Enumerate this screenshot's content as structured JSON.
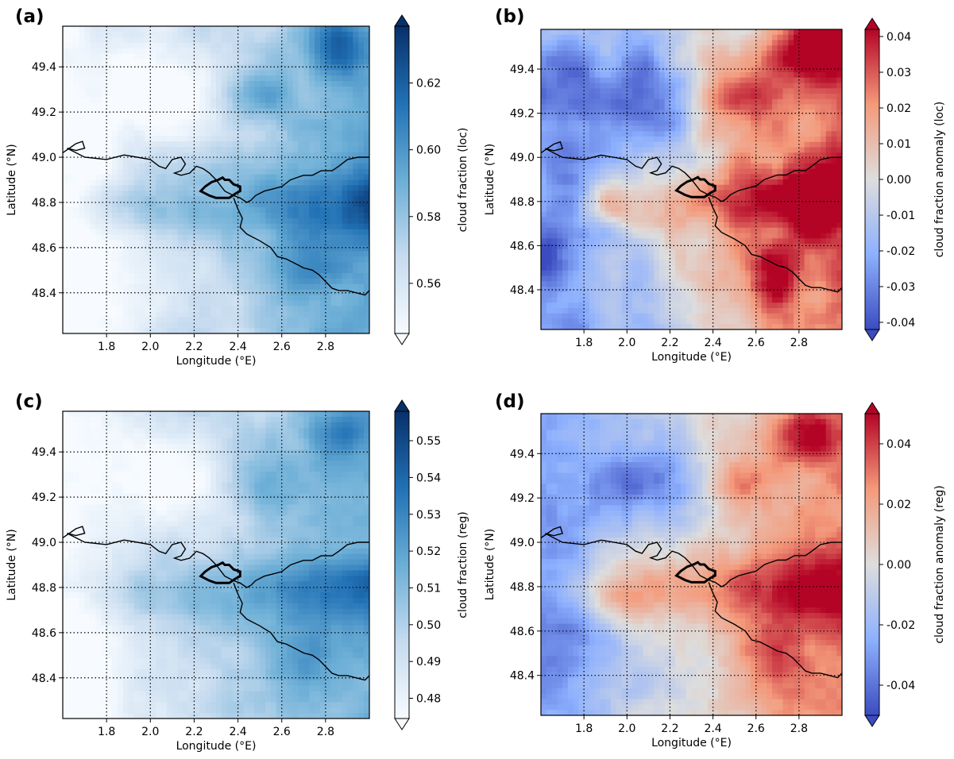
{
  "chart_data": [
    {
      "panel_label": "(a)",
      "type": "heatmap",
      "xlabel": "Longitude (°E)",
      "ylabel": "Latitude (°N)",
      "xlim": [
        1.6,
        3.0
      ],
      "ylim": [
        48.22,
        49.58
      ],
      "xticks": [
        "1.8",
        "2.0",
        "2.2",
        "2.4",
        "2.6",
        "2.8"
      ],
      "yticks": [
        "48.4",
        "48.6",
        "48.8",
        "49.0",
        "49.2",
        "49.4"
      ],
      "colorbar": {
        "label": "cloud fraction (loc)",
        "range": [
          0.545,
          0.637
        ],
        "ticks": [
          "0.56",
          "0.58",
          "0.60",
          "0.62"
        ],
        "tick_values": [
          0.56,
          0.58,
          0.6,
          0.62
        ],
        "colormap": "Blues",
        "extend": "both"
      }
    },
    {
      "panel_label": "(b)",
      "type": "heatmap",
      "xlabel": "Longitude (°E)",
      "ylabel": "Latitude (°N)",
      "xlim": [
        1.6,
        3.0
      ],
      "ylim": [
        48.22,
        49.58
      ],
      "xticks": [
        "1.8",
        "2.0",
        "2.2",
        "2.4",
        "2.6",
        "2.8"
      ],
      "yticks": [
        "48.4",
        "48.6",
        "48.8",
        "49.0",
        "49.2",
        "49.4"
      ],
      "colorbar": {
        "label": "cloud fraction anomaly (loc)",
        "range": [
          -0.042,
          0.042
        ],
        "ticks": [
          "0.04",
          "0.03",
          "0.02",
          "0.01",
          "0.00",
          "-0.01",
          "-0.02",
          "-0.03",
          "-0.04"
        ],
        "tick_values": [
          0.04,
          0.03,
          0.02,
          0.01,
          0.0,
          -0.01,
          -0.02,
          -0.03,
          -0.04
        ],
        "colormap": "coolwarm",
        "extend": "both"
      }
    },
    {
      "panel_label": "(c)",
      "type": "heatmap",
      "xlabel": "Longitude (°E)",
      "ylabel": "Latitude (°N)",
      "xlim": [
        1.6,
        3.0
      ],
      "ylim": [
        48.22,
        49.58
      ],
      "xticks": [
        "1.8",
        "2.0",
        "2.2",
        "2.4",
        "2.6",
        "2.8"
      ],
      "yticks": [
        "48.4",
        "48.6",
        "48.8",
        "49.0",
        "49.2",
        "49.4"
      ],
      "colorbar": {
        "label": "cloud fraction (reg)",
        "range": [
          0.4745,
          0.558
        ],
        "ticks": [
          "0.55",
          "0.54",
          "0.53",
          "0.52",
          "0.51",
          "0.50",
          "0.49",
          "0.48"
        ],
        "tick_values": [
          0.55,
          0.54,
          0.53,
          0.52,
          0.51,
          0.5,
          0.49,
          0.48
        ],
        "colormap": "Blues",
        "extend": "both"
      }
    },
    {
      "panel_label": "(d)",
      "type": "heatmap",
      "xlabel": "Longitude (°E)",
      "ylabel": "Latitude (°N)",
      "xlim": [
        1.6,
        3.0
      ],
      "ylim": [
        48.22,
        49.58
      ],
      "xticks": [
        "1.8",
        "2.0",
        "2.2",
        "2.4",
        "2.6",
        "2.8"
      ],
      "yticks": [
        "48.4",
        "48.6",
        "48.8",
        "49.0",
        "49.2",
        "49.4"
      ],
      "colorbar": {
        "label": "cloud fraction anomaly (reg)",
        "range": [
          -0.05,
          0.05
        ],
        "ticks": [
          "0.04",
          "0.02",
          "0.00",
          "-0.02",
          "-0.04"
        ],
        "tick_values": [
          0.04,
          0.02,
          0.0,
          -0.02,
          -0.04
        ],
        "colormap": "coolwarm",
        "extend": "both"
      }
    }
  ]
}
